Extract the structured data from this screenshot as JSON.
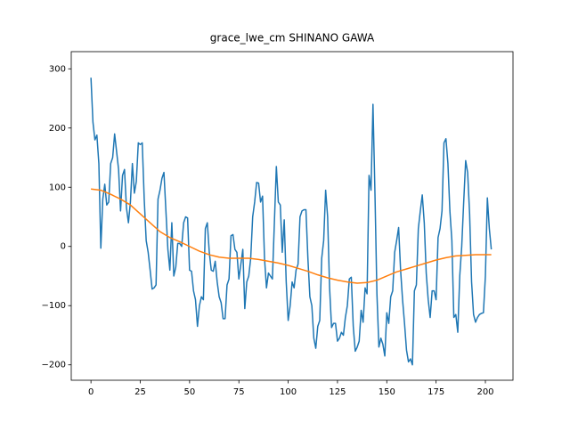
{
  "chart_data": {
    "type": "line",
    "title": "grace_lwe_cm SHINANO GAWA",
    "series": [
      {
        "color": "#1f77b4",
        "x": [
          0,
          1,
          2,
          3,
          4,
          5,
          6,
          7,
          8,
          9,
          10,
          11,
          12,
          13,
          14,
          15,
          16,
          17,
          18,
          19,
          20,
          21,
          22,
          23,
          24,
          25,
          26,
          27,
          28,
          29,
          30,
          31,
          32,
          33,
          34,
          35,
          36,
          37,
          38,
          39,
          40,
          41,
          42,
          43,
          44,
          45,
          46,
          47,
          48,
          49,
          50,
          51,
          52,
          53,
          54,
          55,
          56,
          57,
          58,
          59,
          60,
          61,
          62,
          63,
          64,
          65,
          66,
          67,
          68,
          69,
          70,
          71,
          72,
          73,
          74,
          75,
          76,
          77,
          78,
          79,
          80,
          81,
          82,
          83,
          84,
          85,
          86,
          87,
          88,
          89,
          90,
          91,
          92,
          93,
          94,
          95,
          96,
          97,
          98,
          99,
          100,
          101,
          102,
          103,
          104,
          105,
          106,
          107,
          108,
          109,
          110,
          111,
          112,
          113,
          114,
          115,
          116,
          117,
          118,
          119,
          120,
          121,
          122,
          123,
          124,
          125,
          126,
          127,
          128,
          129,
          130,
          131,
          132,
          133,
          134,
          135,
          136,
          137,
          138,
          139,
          140,
          141,
          142,
          143,
          144,
          145,
          146,
          147,
          148,
          149,
          150,
          151,
          152,
          153,
          154,
          155,
          156,
          157,
          158,
          159,
          160,
          161,
          162,
          163,
          164,
          165,
          166,
          167,
          168,
          169,
          170,
          171,
          172,
          173,
          174,
          175,
          176,
          177,
          178,
          179,
          180,
          181,
          182,
          183,
          184,
          185,
          186,
          187,
          188,
          189,
          190,
          191,
          192,
          193,
          194,
          195,
          196,
          197,
          198,
          199,
          200,
          201,
          202,
          203
        ],
        "values": [
          285,
          210,
          180,
          188,
          140,
          -3,
          80,
          105,
          70,
          75,
          140,
          150,
          190,
          160,
          130,
          60,
          120,
          130,
          65,
          40,
          75,
          140,
          90,
          110,
          175,
          172,
          175,
          80,
          10,
          -10,
          -40,
          -72,
          -70,
          -65,
          80,
          95,
          115,
          125,
          60,
          -5,
          -40,
          40,
          -50,
          -35,
          5,
          5,
          0,
          40,
          50,
          48,
          -40,
          -42,
          -75,
          -90,
          -135,
          -100,
          -85,
          -90,
          30,
          40,
          -10,
          -40,
          -42,
          -25,
          -60,
          -85,
          -95,
          -122,
          -122,
          -65,
          -55,
          18,
          20,
          -5,
          -10,
          -55,
          -30,
          -5,
          -105,
          -60,
          -50,
          -20,
          50,
          75,
          108,
          107,
          75,
          85,
          -20,
          -70,
          -45,
          -50,
          -55,
          40,
          135,
          75,
          70,
          -10,
          45,
          -60,
          -125,
          -100,
          -60,
          -70,
          -40,
          -30,
          50,
          60,
          62,
          62,
          -20,
          -85,
          -100,
          -155,
          -172,
          -135,
          -125,
          -20,
          10,
          95,
          50,
          -70,
          -137,
          -130,
          -130,
          -160,
          -155,
          -145,
          -150,
          -120,
          -100,
          -55,
          -52,
          -135,
          -177,
          -170,
          -160,
          -108,
          -128,
          -70,
          -80,
          120,
          95,
          240,
          90,
          -80,
          -170,
          -155,
          -165,
          -185,
          -112,
          -130,
          -85,
          -75,
          -10,
          10,
          32,
          -40,
          -90,
          -130,
          -175,
          -195,
          -190,
          -200,
          -75,
          -65,
          30,
          60,
          87,
          40,
          -45,
          -90,
          -120,
          -75,
          -75,
          -90,
          15,
          30,
          60,
          175,
          182,
          140,
          60,
          10,
          -120,
          -115,
          -145,
          -50,
          0,
          75,
          145,
          125,
          55,
          -60,
          -115,
          -128,
          -120,
          -115,
          -113,
          -112,
          -50,
          82,
          30,
          -5
        ]
      },
      {
        "color": "#ff7f0e",
        "x": [
          0,
          5,
          10,
          15,
          20,
          25,
          30,
          35,
          40,
          45,
          50,
          55,
          60,
          65,
          70,
          75,
          80,
          85,
          90,
          95,
          100,
          105,
          110,
          115,
          120,
          125,
          130,
          135,
          140,
          145,
          150,
          155,
          160,
          165,
          170,
          175,
          180,
          185,
          190,
          195,
          200,
          203
        ],
        "values": [
          97,
          95,
          88,
          80,
          70,
          55,
          40,
          25,
          15,
          8,
          0,
          -8,
          -14,
          -18,
          -20,
          -20,
          -20,
          -22,
          -25,
          -28,
          -32,
          -37,
          -42,
          -48,
          -53,
          -57,
          -60,
          -62,
          -61,
          -57,
          -50,
          -43,
          -38,
          -33,
          -28,
          -23,
          -19,
          -16,
          -15,
          -14,
          -14,
          -14
        ]
      }
    ],
    "xlim": [
      -10,
      214
    ],
    "ylim": [
      -226,
      329
    ],
    "xticks": [
      0,
      25,
      50,
      75,
      100,
      125,
      150,
      175,
      200
    ],
    "yticks": [
      {
        "value": -200,
        "label": "−200"
      },
      {
        "value": -100,
        "label": "−100"
      },
      0,
      100,
      200,
      300
    ]
  }
}
